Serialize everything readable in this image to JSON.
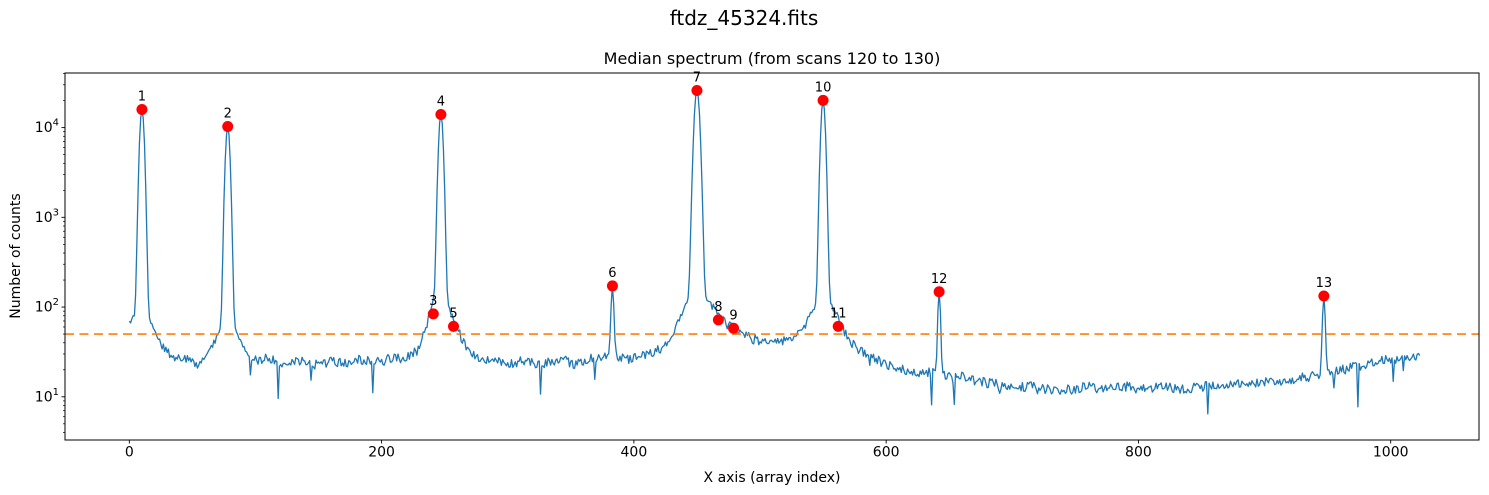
{
  "chart_data": {
    "type": "line",
    "suptitle": "ftdz_45324.fits",
    "title": "Median spectrum (from scans 120 to 130)",
    "xlabel": "X axis (array index)",
    "ylabel": "Number of counts",
    "y_scale": "log",
    "grid": false,
    "legend": null,
    "xlim": [
      -51,
      1070
    ],
    "ylim": [
      3.3,
      40600
    ],
    "x_ticks": [
      0,
      200,
      400,
      600,
      800,
      1000
    ],
    "y_ticks": [
      10,
      100,
      1000,
      10000
    ],
    "line_color": "#1f77b4",
    "threshold_line": {
      "y": 50,
      "color": "#ff7f0e",
      "style": "dashed"
    },
    "marker_color": "#ff0000",
    "peaks": [
      {
        "label": "1",
        "x": 10,
        "y": 15900,
        "sigma": 1.5,
        "has_profile": true
      },
      {
        "label": "2",
        "x": 78,
        "y": 10300,
        "sigma": 1.5,
        "has_profile": true
      },
      {
        "label": "3",
        "x": 241,
        "y": 84,
        "sigma": 0,
        "has_profile": false
      },
      {
        "label": "4",
        "x": 247,
        "y": 14000,
        "sigma": 1.5,
        "has_profile": true
      },
      {
        "label": "5",
        "x": 257,
        "y": 61,
        "sigma": 0,
        "has_profile": false
      },
      {
        "label": "6",
        "x": 383,
        "y": 172,
        "sigma": 0.9,
        "has_profile": true
      },
      {
        "label": "7",
        "x": 450,
        "y": 25900,
        "sigma": 1.8,
        "has_profile": true
      },
      {
        "label": "8",
        "x": 467,
        "y": 72,
        "sigma": 0,
        "has_profile": false
      },
      {
        "label": "9",
        "x": 479,
        "y": 58,
        "sigma": 0,
        "has_profile": false
      },
      {
        "label": "10",
        "x": 550,
        "y": 20100,
        "sigma": 1.5,
        "has_profile": true
      },
      {
        "label": "11",
        "x": 562,
        "y": 61,
        "sigma": 0,
        "has_profile": false
      },
      {
        "label": "12",
        "x": 642,
        "y": 148,
        "sigma": 0.9,
        "has_profile": true
      },
      {
        "label": "13",
        "x": 947,
        "y": 133,
        "sigma": 0.9,
        "has_profile": true
      }
    ],
    "n_points": 1024,
    "baseline_keypoints": [
      [
        0,
        47
      ],
      [
        6,
        40
      ],
      [
        14,
        36
      ],
      [
        22,
        33
      ],
      [
        32,
        29
      ],
      [
        45,
        26
      ],
      [
        55,
        22
      ],
      [
        64,
        27
      ],
      [
        72,
        31
      ],
      [
        80,
        31
      ],
      [
        88,
        28
      ],
      [
        100,
        25
      ],
      [
        112,
        27
      ],
      [
        124,
        23
      ],
      [
        136,
        25
      ],
      [
        148,
        23
      ],
      [
        160,
        25
      ],
      [
        172,
        24
      ],
      [
        184,
        26
      ],
      [
        196,
        24
      ],
      [
        208,
        27
      ],
      [
        218,
        26
      ],
      [
        228,
        31
      ],
      [
        236,
        50
      ],
      [
        241,
        84
      ],
      [
        247,
        95
      ],
      [
        252,
        70
      ],
      [
        257,
        61
      ],
      [
        263,
        42
      ],
      [
        270,
        31
      ],
      [
        280,
        27
      ],
      [
        292,
        25
      ],
      [
        304,
        23
      ],
      [
        314,
        26
      ],
      [
        324,
        22
      ],
      [
        334,
        25
      ],
      [
        344,
        26
      ],
      [
        354,
        23
      ],
      [
        364,
        26
      ],
      [
        372,
        28
      ],
      [
        378,
        30
      ],
      [
        386,
        29
      ],
      [
        394,
        26
      ],
      [
        404,
        28
      ],
      [
        414,
        31
      ],
      [
        424,
        36
      ],
      [
        432,
        44
      ],
      [
        440,
        54
      ],
      [
        446,
        62
      ],
      [
        452,
        67
      ],
      [
        458,
        70
      ],
      [
        467,
        72
      ],
      [
        473,
        62
      ],
      [
        479,
        58
      ],
      [
        486,
        50
      ],
      [
        493,
        45
      ],
      [
        500,
        42
      ],
      [
        508,
        40
      ],
      [
        516,
        42
      ],
      [
        524,
        46
      ],
      [
        532,
        50
      ],
      [
        540,
        57
      ],
      [
        546,
        61
      ],
      [
        552,
        59
      ],
      [
        558,
        62
      ],
      [
        562,
        60
      ],
      [
        568,
        46
      ],
      [
        575,
        36
      ],
      [
        583,
        30
      ],
      [
        592,
        26
      ],
      [
        600,
        23
      ],
      [
        610,
        21
      ],
      [
        620,
        19
      ],
      [
        632,
        19
      ],
      [
        645,
        18
      ],
      [
        658,
        17
      ],
      [
        670,
        15
      ],
      [
        685,
        14
      ],
      [
        700,
        13
      ],
      [
        715,
        13
      ],
      [
        730,
        12
      ],
      [
        745,
        12
      ],
      [
        760,
        13
      ],
      [
        775,
        12
      ],
      [
        790,
        13
      ],
      [
        805,
        12
      ],
      [
        820,
        13
      ],
      [
        835,
        12
      ],
      [
        850,
        13
      ],
      [
        865,
        13
      ],
      [
        880,
        14
      ],
      [
        895,
        14
      ],
      [
        910,
        15
      ],
      [
        925,
        16
      ],
      [
        938,
        17
      ],
      [
        950,
        18
      ],
      [
        962,
        20
      ],
      [
        975,
        22
      ],
      [
        988,
        25
      ],
      [
        1000,
        26
      ],
      [
        1012,
        28
      ],
      [
        1023,
        29
      ]
    ],
    "noise": {
      "seed": 20,
      "amplitude_dex": 0.055,
      "dip_probability": 0.03,
      "dip_max_dex": 0.42,
      "dip_base_below": 30
    }
  }
}
